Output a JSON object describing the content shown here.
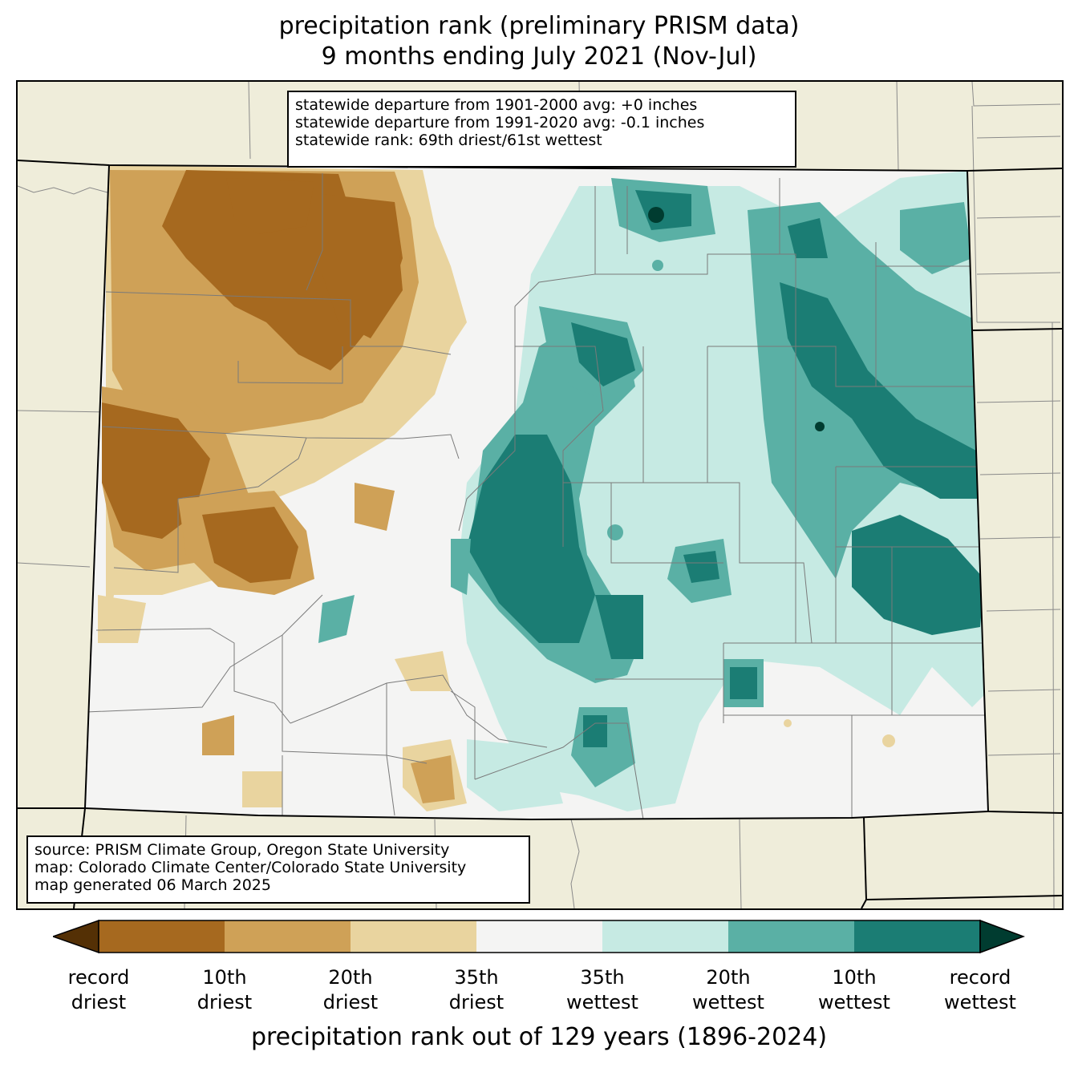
{
  "title": {
    "line1": "precipitation rank (preliminary PRISM data)",
    "line2": "9 months ending July 2021 (Nov-Jul)"
  },
  "stats": {
    "line1": "statewide departure from 1901-2000 avg: +0 inches",
    "line2": "statewide departure from 1991-2020 avg: -0.1 inches",
    "line3": "statewide rank: 69th driest/61st wettest"
  },
  "source": {
    "line1": "source: PRISM Climate Group, Oregon State University",
    "line2": "map: Colorado Climate Center/Colorado State University",
    "line3": "map generated 06 March 2025"
  },
  "colors": {
    "background_land": "#efedda",
    "record_driest": "#543005",
    "rank_1_10_driest": "#a6691f",
    "rank_10_20_driest": "#cfa157",
    "rank_20_35_driest": "#e9d49f",
    "near_normal": "#f4f4f3",
    "rank_20_35_wettest": "#c6eae3",
    "rank_10_20_wettest": "#5ab0a5",
    "rank_1_10_wettest": "#1b7d74",
    "record_wettest": "#003c30"
  },
  "colorbar": {
    "labels": [
      {
        "l1": "record",
        "l2": "driest"
      },
      {
        "l1": "10th",
        "l2": "driest"
      },
      {
        "l1": "20th",
        "l2": "driest"
      },
      {
        "l1": "35th",
        "l2": "driest"
      },
      {
        "l1": "35th",
        "l2": "wettest"
      },
      {
        "l1": "20th",
        "l2": "wettest"
      },
      {
        "l1": "10th",
        "l2": "wettest"
      },
      {
        "l1": "record",
        "l2": "wettest"
      }
    ],
    "title": "precipitation rank out of 129 years (1896-2024)"
  }
}
